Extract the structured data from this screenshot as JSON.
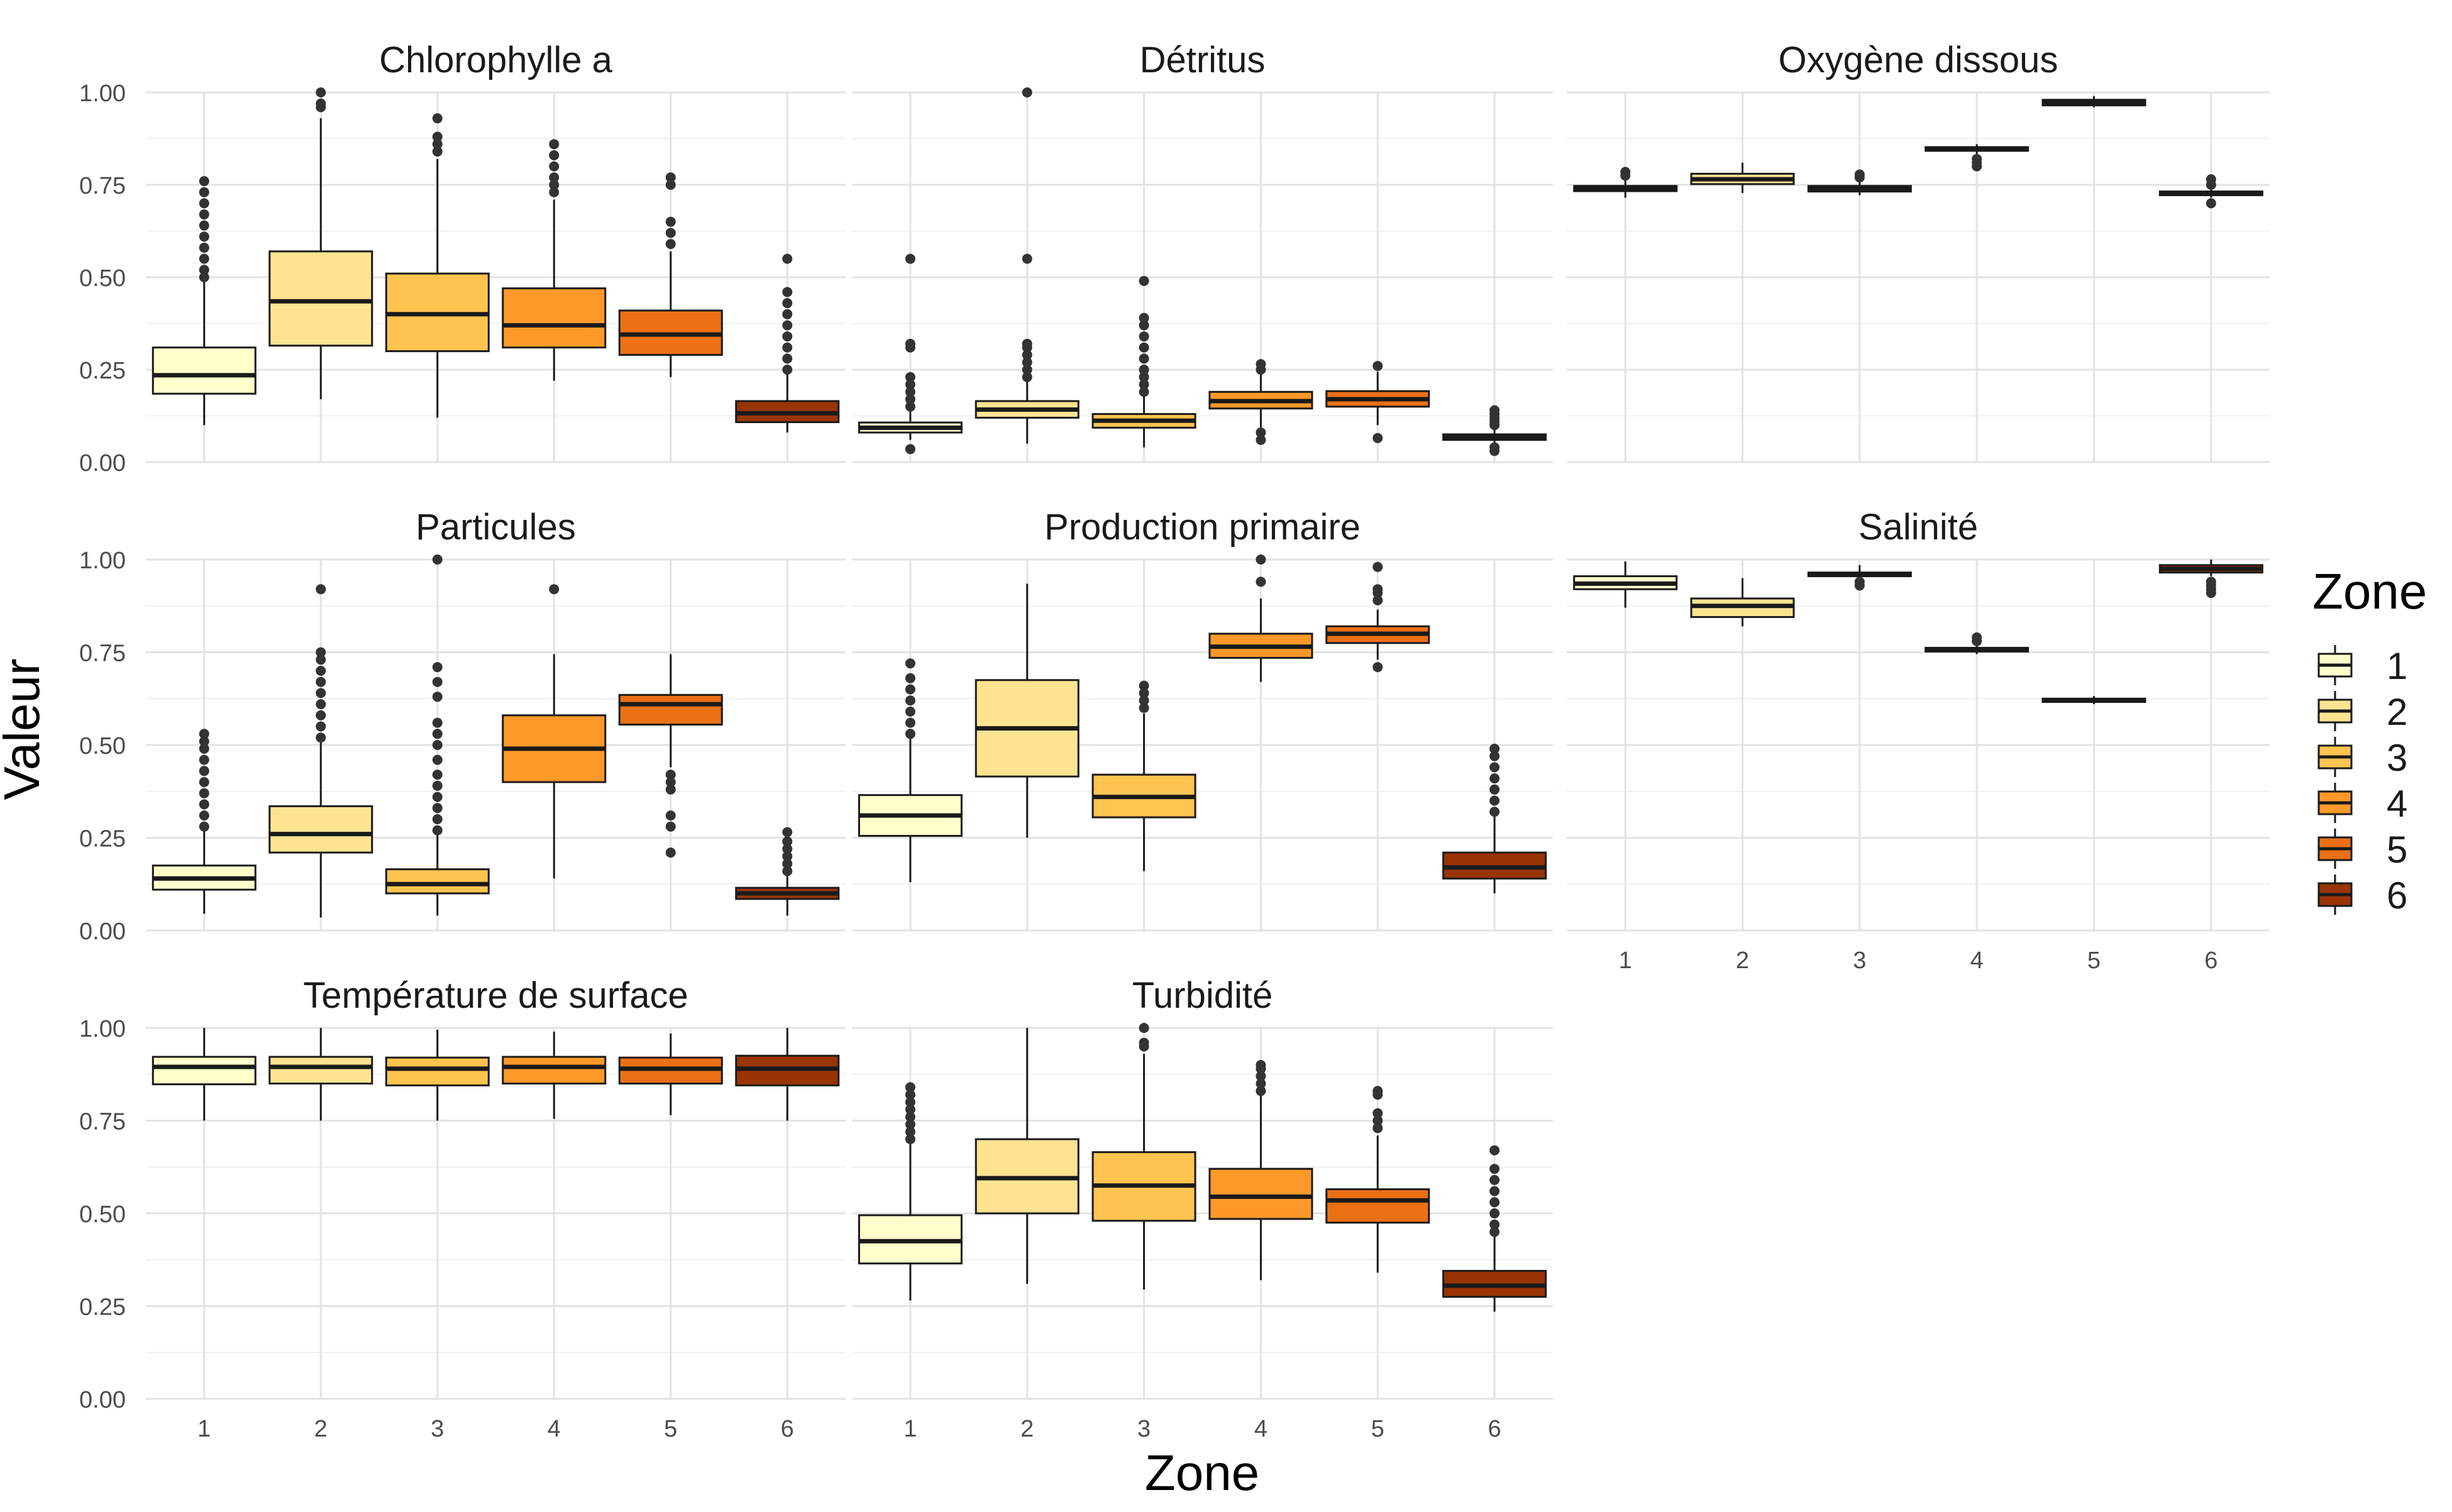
{
  "chart_data": {
    "type": "boxplot",
    "facet_layout": "3x3 grid, shared x and y axes",
    "ylim": [
      0,
      1
    ],
    "y_ticks": [
      "0.00",
      "0.25",
      "0.50",
      "0.75",
      "1.00"
    ],
    "categories": [
      "1",
      "2",
      "3",
      "4",
      "5",
      "6"
    ],
    "xlabel": "Zone",
    "ylabel": "Valeur",
    "legend": {
      "title": "Zone",
      "placement": "right",
      "entries": [
        "1",
        "2",
        "3",
        "4",
        "5",
        "6"
      ]
    },
    "colors": [
      "#ffffcc",
      "#fee391",
      "#fec44f",
      "#fe9929",
      "#ec7014",
      "#993404"
    ],
    "grid": true,
    "panels": [
      {
        "title": "Chlorophylle a",
        "boxes": [
          {
            "zone": "1",
            "min": 0.1,
            "q1": 0.185,
            "median": 0.235,
            "q3": 0.31,
            "max": 0.49,
            "outliers": [
              0.5,
              0.52,
              0.55,
              0.58,
              0.61,
              0.64,
              0.67,
              0.7,
              0.73,
              0.76
            ]
          },
          {
            "zone": "2",
            "min": 0.17,
            "q1": 0.315,
            "median": 0.435,
            "q3": 0.57,
            "max": 0.93,
            "outliers": [
              0.96,
              0.97,
              1.0
            ]
          },
          {
            "zone": "3",
            "min": 0.12,
            "q1": 0.3,
            "median": 0.4,
            "q3": 0.51,
            "max": 0.82,
            "outliers": [
              0.84,
              0.86,
              0.88,
              0.93
            ]
          },
          {
            "zone": "4",
            "min": 0.22,
            "q1": 0.31,
            "median": 0.37,
            "q3": 0.47,
            "max": 0.71,
            "outliers": [
              0.73,
              0.75,
              0.77,
              0.8,
              0.83,
              0.86
            ]
          },
          {
            "zone": "5",
            "min": 0.23,
            "q1": 0.29,
            "median": 0.345,
            "q3": 0.41,
            "max": 0.57,
            "outliers": [
              0.59,
              0.62,
              0.65,
              0.75,
              0.77
            ]
          },
          {
            "zone": "6",
            "min": 0.08,
            "q1": 0.108,
            "median": 0.132,
            "q3": 0.165,
            "max": 0.24,
            "outliers": [
              0.25,
              0.28,
              0.31,
              0.34,
              0.37,
              0.4,
              0.43,
              0.46,
              0.55
            ]
          }
        ]
      },
      {
        "title": "Détritus",
        "boxes": [
          {
            "zone": "1",
            "min": 0.06,
            "q1": 0.08,
            "median": 0.093,
            "q3": 0.107,
            "max": 0.14,
            "outliers": [
              0.035,
              0.15,
              0.17,
              0.19,
              0.21,
              0.23,
              0.31,
              0.32,
              0.55
            ]
          },
          {
            "zone": "2",
            "min": 0.05,
            "q1": 0.12,
            "median": 0.142,
            "q3": 0.165,
            "max": 0.22,
            "outliers": [
              0.23,
              0.25,
              0.27,
              0.29,
              0.31,
              0.32,
              0.55,
              1.0
            ]
          },
          {
            "zone": "3",
            "min": 0.04,
            "q1": 0.093,
            "median": 0.112,
            "q3": 0.13,
            "max": 0.18,
            "outliers": [
              0.19,
              0.21,
              0.23,
              0.25,
              0.28,
              0.31,
              0.34,
              0.37,
              0.39,
              0.49
            ]
          },
          {
            "zone": "4",
            "min": 0.09,
            "q1": 0.145,
            "median": 0.165,
            "q3": 0.19,
            "max": 0.24,
            "outliers": [
              0.06,
              0.08,
              0.25,
              0.265
            ]
          },
          {
            "zone": "5",
            "min": 0.1,
            "q1": 0.15,
            "median": 0.17,
            "q3": 0.192,
            "max": 0.245,
            "outliers": [
              0.065,
              0.26
            ]
          },
          {
            "zone": "6",
            "min": 0.05,
            "q1": 0.06,
            "median": 0.068,
            "q3": 0.075,
            "max": 0.09,
            "outliers": [
              0.03,
              0.04,
              0.1,
              0.11,
              0.12,
              0.13,
              0.14
            ]
          }
        ]
      },
      {
        "title": "Oxygène dissous",
        "boxes": [
          {
            "zone": "1",
            "min": 0.715,
            "q1": 0.733,
            "median": 0.74,
            "q3": 0.747,
            "max": 0.765,
            "outliers": [
              0.775,
              0.785
            ]
          },
          {
            "zone": "2",
            "min": 0.728,
            "q1": 0.752,
            "median": 0.765,
            "q3": 0.78,
            "max": 0.81,
            "outliers": []
          },
          {
            "zone": "3",
            "min": 0.722,
            "q1": 0.732,
            "median": 0.74,
            "q3": 0.747,
            "max": 0.758,
            "outliers": [
              0.77,
              0.778
            ]
          },
          {
            "zone": "4",
            "min": 0.828,
            "q1": 0.842,
            "median": 0.848,
            "q3": 0.852,
            "max": 0.86,
            "outliers": [
              0.8,
              0.81,
              0.82
            ]
          },
          {
            "zone": "5",
            "min": 0.96,
            "q1": 0.965,
            "median": 0.972,
            "q3": 0.98,
            "max": 0.99,
            "outliers": []
          },
          {
            "zone": "6",
            "min": 0.715,
            "q1": 0.722,
            "median": 0.727,
            "q3": 0.732,
            "max": 0.74,
            "outliers": [
              0.7,
              0.75,
              0.765
            ]
          }
        ]
      },
      {
        "title": "Particules",
        "boxes": [
          {
            "zone": "1",
            "min": 0.045,
            "q1": 0.11,
            "median": 0.14,
            "q3": 0.175,
            "max": 0.27,
            "outliers": [
              0.28,
              0.31,
              0.34,
              0.37,
              0.4,
              0.43,
              0.46,
              0.49,
              0.51,
              0.53
            ]
          },
          {
            "zone": "2",
            "min": 0.035,
            "q1": 0.21,
            "median": 0.26,
            "q3": 0.335,
            "max": 0.51,
            "outliers": [
              0.52,
              0.55,
              0.58,
              0.61,
              0.64,
              0.67,
              0.7,
              0.73,
              0.75,
              0.92
            ]
          },
          {
            "zone": "3",
            "min": 0.04,
            "q1": 0.1,
            "median": 0.125,
            "q3": 0.165,
            "max": 0.26,
            "outliers": [
              0.27,
              0.3,
              0.33,
              0.36,
              0.39,
              0.42,
              0.46,
              0.5,
              0.53,
              0.56,
              0.63,
              0.67,
              0.71,
              1.0
            ]
          },
          {
            "zone": "4",
            "min": 0.14,
            "q1": 0.4,
            "median": 0.49,
            "q3": 0.58,
            "max": 0.745,
            "outliers": [
              0.92
            ]
          },
          {
            "zone": "5",
            "min": 0.44,
            "q1": 0.555,
            "median": 0.61,
            "q3": 0.635,
            "max": 0.745,
            "outliers": [
              0.21,
              0.28,
              0.31,
              0.38,
              0.4,
              0.42
            ]
          },
          {
            "zone": "6",
            "min": 0.04,
            "q1": 0.085,
            "median": 0.1,
            "q3": 0.115,
            "max": 0.155,
            "outliers": [
              0.16,
              0.18,
              0.2,
              0.22,
              0.24,
              0.265
            ]
          }
        ]
      },
      {
        "title": "Production primaire",
        "boxes": [
          {
            "zone": "1",
            "min": 0.13,
            "q1": 0.255,
            "median": 0.31,
            "q3": 0.365,
            "max": 0.52,
            "outliers": [
              0.53,
              0.56,
              0.59,
              0.62,
              0.65,
              0.68,
              0.72
            ]
          },
          {
            "zone": "2",
            "min": 0.25,
            "q1": 0.415,
            "median": 0.545,
            "q3": 0.675,
            "max": 0.935,
            "outliers": []
          },
          {
            "zone": "3",
            "min": 0.16,
            "q1": 0.305,
            "median": 0.36,
            "q3": 0.42,
            "max": 0.585,
            "outliers": [
              0.6,
              0.62,
              0.64,
              0.66
            ]
          },
          {
            "zone": "4",
            "min": 0.67,
            "q1": 0.735,
            "median": 0.765,
            "q3": 0.8,
            "max": 0.895,
            "outliers": [
              0.94,
              1.0
            ]
          },
          {
            "zone": "5",
            "min": 0.73,
            "q1": 0.775,
            "median": 0.8,
            "q3": 0.82,
            "max": 0.865,
            "outliers": [
              0.71,
              0.89,
              0.91,
              0.92,
              0.98
            ]
          },
          {
            "zone": "6",
            "min": 0.1,
            "q1": 0.14,
            "median": 0.17,
            "q3": 0.21,
            "max": 0.31,
            "outliers": [
              0.32,
              0.35,
              0.38,
              0.41,
              0.44,
              0.47,
              0.49
            ]
          }
        ]
      },
      {
        "title": "Salinité",
        "boxes": [
          {
            "zone": "1",
            "min": 0.87,
            "q1": 0.92,
            "median": 0.935,
            "q3": 0.955,
            "max": 0.995,
            "outliers": []
          },
          {
            "zone": "2",
            "min": 0.82,
            "q1": 0.845,
            "median": 0.875,
            "q3": 0.895,
            "max": 0.95,
            "outliers": []
          },
          {
            "zone": "3",
            "min": 0.95,
            "q1": 0.955,
            "median": 0.96,
            "q3": 0.965,
            "max": 0.985,
            "outliers": [
              0.93,
              0.94
            ]
          },
          {
            "zone": "4",
            "min": 0.745,
            "q1": 0.752,
            "median": 0.757,
            "q3": 0.762,
            "max": 0.772,
            "outliers": [
              0.78,
              0.79
            ]
          },
          {
            "zone": "5",
            "min": 0.61,
            "q1": 0.616,
            "median": 0.62,
            "q3": 0.625,
            "max": 0.632,
            "outliers": []
          },
          {
            "zone": "6",
            "min": 0.955,
            "q1": 0.965,
            "median": 0.975,
            "q3": 0.985,
            "max": 1.0,
            "outliers": [
              0.91,
              0.92,
              0.93,
              0.94
            ]
          }
        ]
      },
      {
        "title": "Température de surface",
        "boxes": [
          {
            "zone": "1",
            "min": 0.75,
            "q1": 0.848,
            "median": 0.895,
            "q3": 0.922,
            "max": 1.0,
            "outliers": []
          },
          {
            "zone": "2",
            "min": 0.75,
            "q1": 0.85,
            "median": 0.895,
            "q3": 0.922,
            "max": 1.0,
            "outliers": []
          },
          {
            "zone": "3",
            "min": 0.75,
            "q1": 0.845,
            "median": 0.89,
            "q3": 0.92,
            "max": 0.995,
            "outliers": []
          },
          {
            "zone": "4",
            "min": 0.755,
            "q1": 0.85,
            "median": 0.895,
            "q3": 0.922,
            "max": 0.99,
            "outliers": []
          },
          {
            "zone": "5",
            "min": 0.765,
            "q1": 0.85,
            "median": 0.89,
            "q3": 0.92,
            "max": 0.985,
            "outliers": []
          },
          {
            "zone": "6",
            "min": 0.75,
            "q1": 0.845,
            "median": 0.89,
            "q3": 0.925,
            "max": 1.0,
            "outliers": []
          }
        ]
      },
      {
        "title": "Turbidité",
        "boxes": [
          {
            "zone": "1",
            "min": 0.265,
            "q1": 0.365,
            "median": 0.425,
            "q3": 0.495,
            "max": 0.69,
            "outliers": [
              0.7,
              0.72,
              0.74,
              0.76,
              0.78,
              0.8,
              0.82,
              0.84
            ]
          },
          {
            "zone": "2",
            "min": 0.31,
            "q1": 0.5,
            "median": 0.595,
            "q3": 0.7,
            "max": 1.0,
            "outliers": []
          },
          {
            "zone": "3",
            "min": 0.295,
            "q1": 0.48,
            "median": 0.575,
            "q3": 0.665,
            "max": 0.93,
            "outliers": [
              0.95,
              0.96,
              1.0
            ]
          },
          {
            "zone": "4",
            "min": 0.32,
            "q1": 0.485,
            "median": 0.545,
            "q3": 0.62,
            "max": 0.82,
            "outliers": [
              0.83,
              0.85,
              0.87,
              0.89,
              0.9
            ]
          },
          {
            "zone": "5",
            "min": 0.34,
            "q1": 0.475,
            "median": 0.535,
            "q3": 0.565,
            "max": 0.71,
            "outliers": [
              0.73,
              0.75,
              0.77,
              0.82,
              0.83
            ]
          },
          {
            "zone": "6",
            "min": 0.235,
            "q1": 0.275,
            "median": 0.305,
            "q3": 0.345,
            "max": 0.445,
            "outliers": [
              0.45,
              0.47,
              0.5,
              0.53,
              0.56,
              0.59,
              0.62,
              0.67
            ]
          }
        ]
      }
    ]
  }
}
